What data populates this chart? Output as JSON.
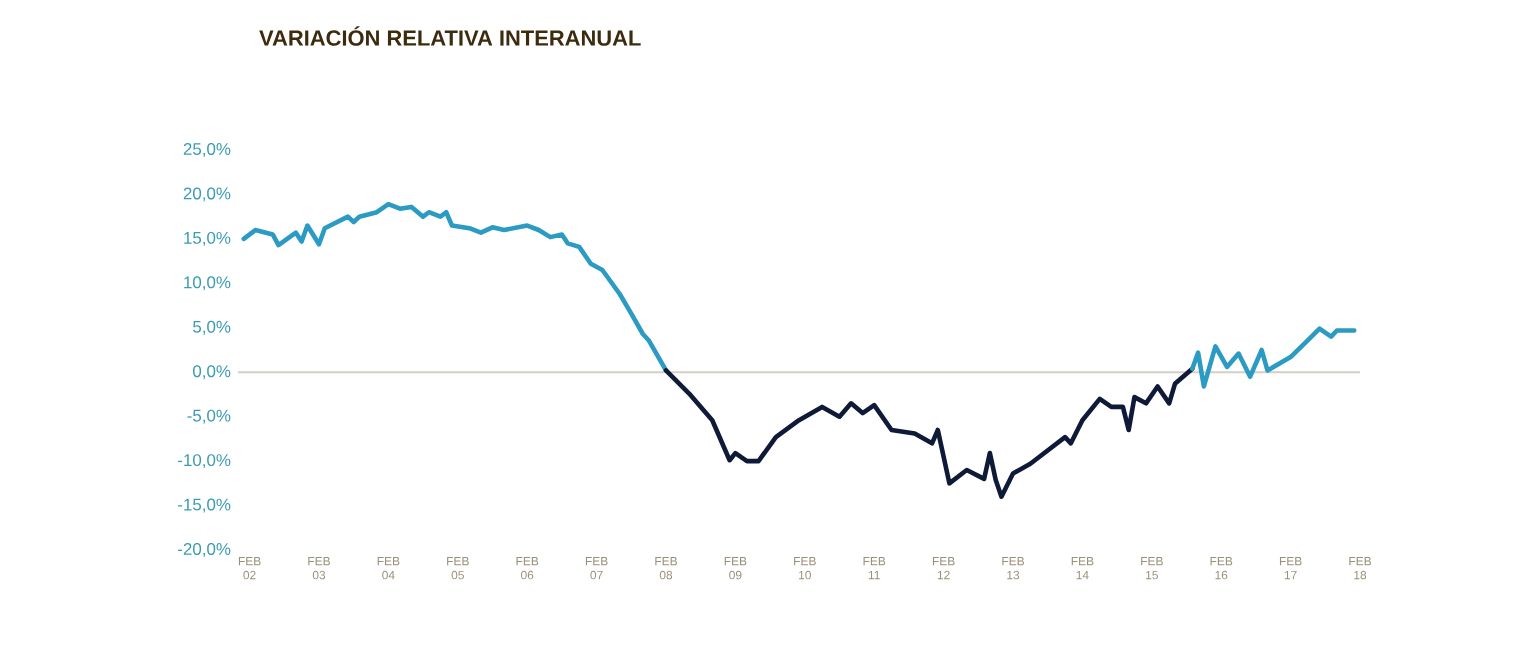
{
  "chart_data": {
    "type": "line",
    "title": "VARIACIÓN RELATIVA INTERANUAL",
    "xlim": [
      "2001-12",
      "2018-02"
    ],
    "ylim": [
      -20,
      25
    ],
    "xticks": [
      {
        "value": "2002-02",
        "label": "FEB 02"
      },
      {
        "value": "2003-02",
        "label": "FEB 03"
      },
      {
        "value": "2004-02",
        "label": "FEB 04"
      },
      {
        "value": "2005-02",
        "label": "FEB 05"
      },
      {
        "value": "2006-02",
        "label": "FEB 06"
      },
      {
        "value": "2007-02",
        "label": "FEB 07"
      },
      {
        "value": "2008-02",
        "label": "FEB 08"
      },
      {
        "value": "2009-02",
        "label": "FEB 09"
      },
      {
        "value": "2010-02",
        "label": "FEB 10"
      },
      {
        "value": "2011-02",
        "label": "FEB 11"
      },
      {
        "value": "2012-02",
        "label": "FEB 12"
      },
      {
        "value": "2013-02",
        "label": "FEB 13"
      },
      {
        "value": "2014-02",
        "label": "FEB 14"
      },
      {
        "value": "2015-02",
        "label": "FEB 15"
      },
      {
        "value": "2016-02",
        "label": "FEB 16"
      },
      {
        "value": "2017-02",
        "label": "FEB 17"
      },
      {
        "value": "2018-02",
        "label": "FEB 18"
      }
    ],
    "yticks": [
      {
        "value": -20,
        "label": "-20,0%"
      },
      {
        "value": -15,
        "label": "-15,0%"
      },
      {
        "value": -10,
        "label": "-10,0%"
      },
      {
        "value": -5,
        "label": "-5,0%"
      },
      {
        "value": 0,
        "label": "0,0%"
      },
      {
        "value": 5,
        "label": "5,0%"
      },
      {
        "value": 10,
        "label": "10,0%"
      },
      {
        "value": 15,
        "label": "15,0%"
      },
      {
        "value": 20,
        "label": "20,0%"
      },
      {
        "value": 25,
        "label": "25,0%"
      }
    ],
    "ref_lines": [
      {
        "axis": "y",
        "value": 0,
        "color": "#d3cec6"
      }
    ],
    "grid": false,
    "series": [
      {
        "color": "#2b9bc3",
        "x": [
          "2002-01",
          "2002-03",
          "2002-06",
          "2002-07",
          "2002-10",
          "2002-11",
          "2002-12",
          "2003-02",
          "2003-03",
          "2003-07",
          "2003-08",
          "2003-09",
          "2003-12",
          "2004-02",
          "2004-04",
          "2004-06",
          "2004-08",
          "2004-09",
          "2004-11",
          "2004-12",
          "2005-01",
          "2005-04",
          "2005-06",
          "2005-08",
          "2005-10",
          "2006-02",
          "2006-04",
          "2006-06",
          "2006-08",
          "2006-09",
          "2006-11",
          "2007-01",
          "2007-03",
          "2007-06",
          "2007-08",
          "2007-10",
          "2007-11",
          "2008-02"
        ],
        "values": [
          15.0,
          16.0,
          15.5,
          14.3,
          15.7,
          14.7,
          16.5,
          14.4,
          16.2,
          17.5,
          16.9,
          17.5,
          18.0,
          18.9,
          18.4,
          18.6,
          17.5,
          18.0,
          17.5,
          18.0,
          16.5,
          16.2,
          15.7,
          16.3,
          16.0,
          16.5,
          16.0,
          15.2,
          15.5,
          14.5,
          14.1,
          12.2,
          11.5,
          8.8,
          6.6,
          4.3,
          3.6,
          0.2
        ]
      },
      {
        "color": "#0e1a38",
        "x": [
          "2008-02",
          "2008-06",
          "2008-10",
          "2009-01",
          "2009-02",
          "2009-04",
          "2009-06",
          "2009-09",
          "2010-01",
          "2010-05",
          "2010-08",
          "2010-10",
          "2010-12",
          "2011-02",
          "2011-05",
          "2011-09",
          "2011-12",
          "2012-01",
          "2012-03",
          "2012-06",
          "2012-09",
          "2012-10",
          "2012-11",
          "2012-12",
          "2013-02",
          "2013-05",
          "2013-08",
          "2013-11",
          "2013-12",
          "2014-02",
          "2014-05",
          "2014-07",
          "2014-09",
          "2014-10",
          "2014-11",
          "2015-01",
          "2015-03",
          "2015-05",
          "2015-06",
          "2015-09"
        ],
        "values": [
          0.2,
          -2.4,
          -5.4,
          -9.9,
          -9.1,
          -10.0,
          -10.0,
          -7.3,
          -5.4,
          -3.9,
          -5.0,
          -3.5,
          -4.6,
          -3.7,
          -6.5,
          -6.9,
          -8.0,
          -6.5,
          -12.5,
          -11.0,
          -12.0,
          -9.1,
          -12.1,
          -14.0,
          -11.4,
          -10.3,
          -8.8,
          -7.3,
          -8.0,
          -5.4,
          -3.0,
          -3.9,
          -3.9,
          -6.5,
          -2.8,
          -3.5,
          -1.6,
          -3.5,
          -1.3,
          0.4
        ]
      },
      {
        "color": "#2b9bc3",
        "x": [
          "2015-09",
          "2015-10",
          "2015-11",
          "2016-01",
          "2016-03",
          "2016-05",
          "2016-07",
          "2016-09",
          "2016-10",
          "2017-02",
          "2017-05",
          "2017-07",
          "2017-09",
          "2017-10",
          "2018-01"
        ],
        "values": [
          0.4,
          2.2,
          -1.6,
          2.9,
          0.6,
          2.1,
          -0.5,
          2.5,
          0.2,
          1.7,
          3.6,
          4.9,
          4.0,
          4.7,
          4.7
        ]
      }
    ]
  }
}
